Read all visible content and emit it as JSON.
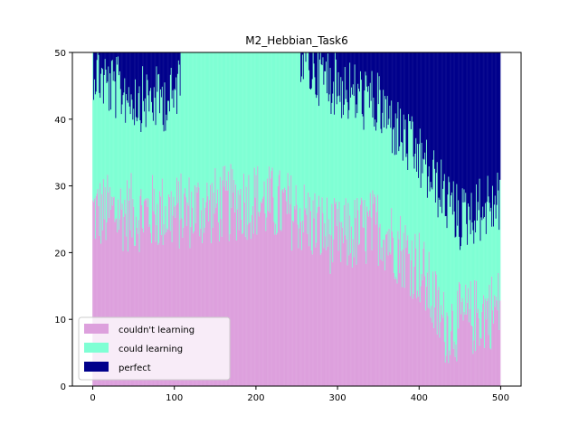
{
  "chart_data": {
    "type": "bar",
    "stacked": true,
    "title": "M2_Hebbian_Task6",
    "xlabel": "",
    "ylabel": "",
    "xlim": [
      -25,
      525
    ],
    "ylim": [
      0,
      50
    ],
    "xticks": [
      0,
      100,
      200,
      300,
      400,
      500
    ],
    "yticks": [
      0,
      10,
      20,
      30,
      40,
      50
    ],
    "grid": false,
    "legend_position": "lower-left",
    "n_trials": 500,
    "total_per_bar": 50,
    "series": [
      {
        "name": "couldn't learning",
        "color": "#dda0dd",
        "trend": {
          "x": [
            0,
            100,
            150,
            200,
            250,
            300,
            350,
            400,
            430,
            460,
            500
          ],
          "y": [
            26,
            26,
            27,
            28,
            26,
            22,
            24,
            18,
            9,
            10,
            12
          ]
        }
      },
      {
        "name": "could learning",
        "color": "#7fffd4",
        "trend": {
          "x": [
            0,
            20,
            60,
            100,
            110,
            250,
            265,
            300,
            350,
            400,
            450,
            500
          ],
          "y": [
            22,
            19,
            17,
            17,
            24,
            24,
            22,
            23,
            18,
            16,
            15,
            16
          ]
        }
      },
      {
        "name": "perfect",
        "color": "#00008b",
        "trend": {
          "x": [
            0,
            20,
            60,
            100,
            110,
            250,
            265,
            300,
            350,
            400,
            450,
            500
          ],
          "y": [
            2,
            5,
            7,
            7,
            0,
            0,
            2,
            5,
            8,
            16,
            25,
            22
          ]
        }
      }
    ]
  }
}
